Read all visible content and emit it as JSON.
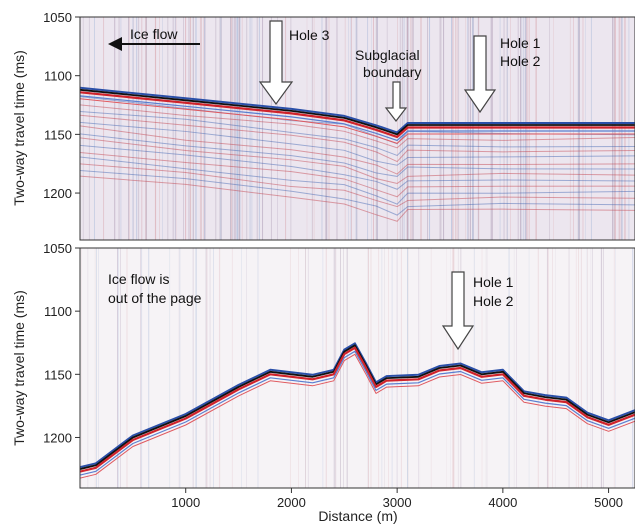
{
  "chart_data": [
    {
      "type": "line",
      "panel": "top",
      "ylabel": "Two-way travel time (ms)",
      "xlabel": "",
      "xlim": [
        0,
        5250
      ],
      "ylim": [
        1050,
        1240
      ],
      "y_reversed": true,
      "yticks": [
        1050,
        1100,
        1150,
        1200
      ],
      "series": [
        {
          "x": [
            0,
            1000,
            2000,
            2500,
            2800,
            3000,
            3100,
            4000,
            5250
          ],
          "y": [
            1112,
            1121,
            1130,
            1136,
            1144,
            1150,
            1142,
            1142,
            1142
          ]
        }
      ],
      "annotations": [
        {
          "text": "Ice flow",
          "kind": "arrow-left"
        },
        {
          "text": "Hole 3",
          "kind": "arrow-down",
          "x": 1800
        },
        {
          "text": "Subglacial boundary",
          "lines": [
            "Subglacial",
            "boundary"
          ],
          "kind": "arrow-down",
          "x": 2980
        },
        {
          "text": "Hole 1 Hole 2",
          "lines": [
            "Hole 1",
            "Hole 2"
          ],
          "kind": "arrow-down",
          "x": 3780
        }
      ]
    },
    {
      "type": "line",
      "panel": "bottom",
      "ylabel": "Two-way travel time (ms)",
      "xlabel": "Distance (m)",
      "xlim": [
        0,
        5250
      ],
      "ylim": [
        1050,
        1240
      ],
      "y_reversed": true,
      "yticks": [
        1050,
        1100,
        1150,
        1200
      ],
      "xticks": [
        1000,
        2000,
        3000,
        4000,
        5000
      ],
      "series": [
        {
          "x": [
            0,
            150,
            500,
            1000,
            1500,
            1800,
            2000,
            2200,
            2400,
            2500,
            2600,
            2700,
            2800,
            2900,
            3200,
            3400,
            3600,
            3800,
            4000,
            4200,
            4400,
            4600,
            4800,
            5000,
            5250
          ],
          "y": [
            1225,
            1222,
            1200,
            1183,
            1160,
            1148,
            1150,
            1152,
            1148,
            1132,
            1127,
            1142,
            1158,
            1153,
            1152,
            1145,
            1143,
            1150,
            1148,
            1165,
            1168,
            1170,
            1182,
            1188,
            1180
          ]
        }
      ],
      "annotations": [
        {
          "text": "Ice flow is out of the page",
          "lines": [
            "Ice flow is",
            "out of the page"
          ],
          "kind": "label"
        },
        {
          "text": "Hole 1 Hole 2",
          "lines": [
            "Hole 1",
            "Hole 2"
          ],
          "kind": "arrow-down",
          "x": 3600
        }
      ]
    }
  ]
}
